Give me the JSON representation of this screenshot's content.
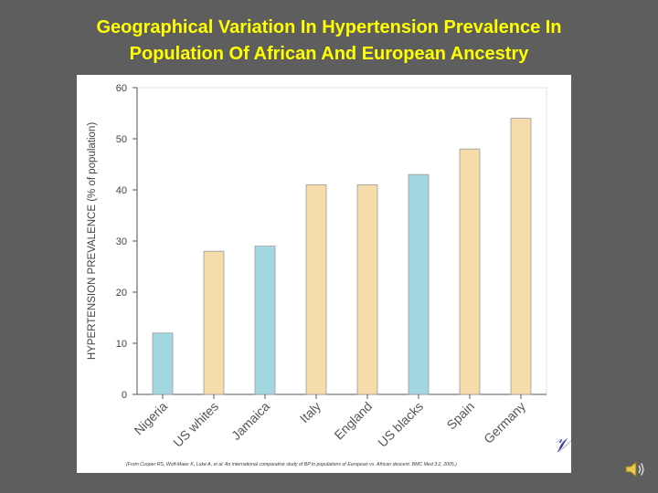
{
  "slide": {
    "title_line1": "Geographical Variation In Hypertension Prevalence In",
    "title_line2": "Population Of African And European Ancestry",
    "title_color": "#ffff00",
    "background": "#5e5e5e"
  },
  "chart_data": {
    "type": "bar",
    "title": "Geographical Variation In Hypertension Prevalence In Population Of African And European Ancestry",
    "xlabel": "",
    "ylabel": "HYPERTENSION PREVALENCE (% of population)",
    "ylim": [
      0,
      60
    ],
    "yticks": [
      0,
      10,
      20,
      30,
      40,
      50,
      60
    ],
    "grid": false,
    "categories": [
      "Nigeria",
      "US whites",
      "Jamaica",
      "Italy",
      "England",
      "US blacks",
      "Spain",
      "Germany"
    ],
    "values": [
      12,
      28,
      29,
      41,
      41,
      43,
      48,
      54
    ],
    "ancestry": [
      "African",
      "European",
      "African",
      "European",
      "European",
      "African",
      "European",
      "European"
    ],
    "colors": {
      "African": "#a3d8e3",
      "European": "#f6dcaa"
    },
    "citation": "(From Cooper RS, Wolf-Maier K, Luke A, et al: An international comparative study of BP in populations of European vs. African descent. BMC Med 3:2, 2005.)"
  },
  "icons": {
    "logo": "logo-mark-icon",
    "speaker": "speaker-icon"
  }
}
